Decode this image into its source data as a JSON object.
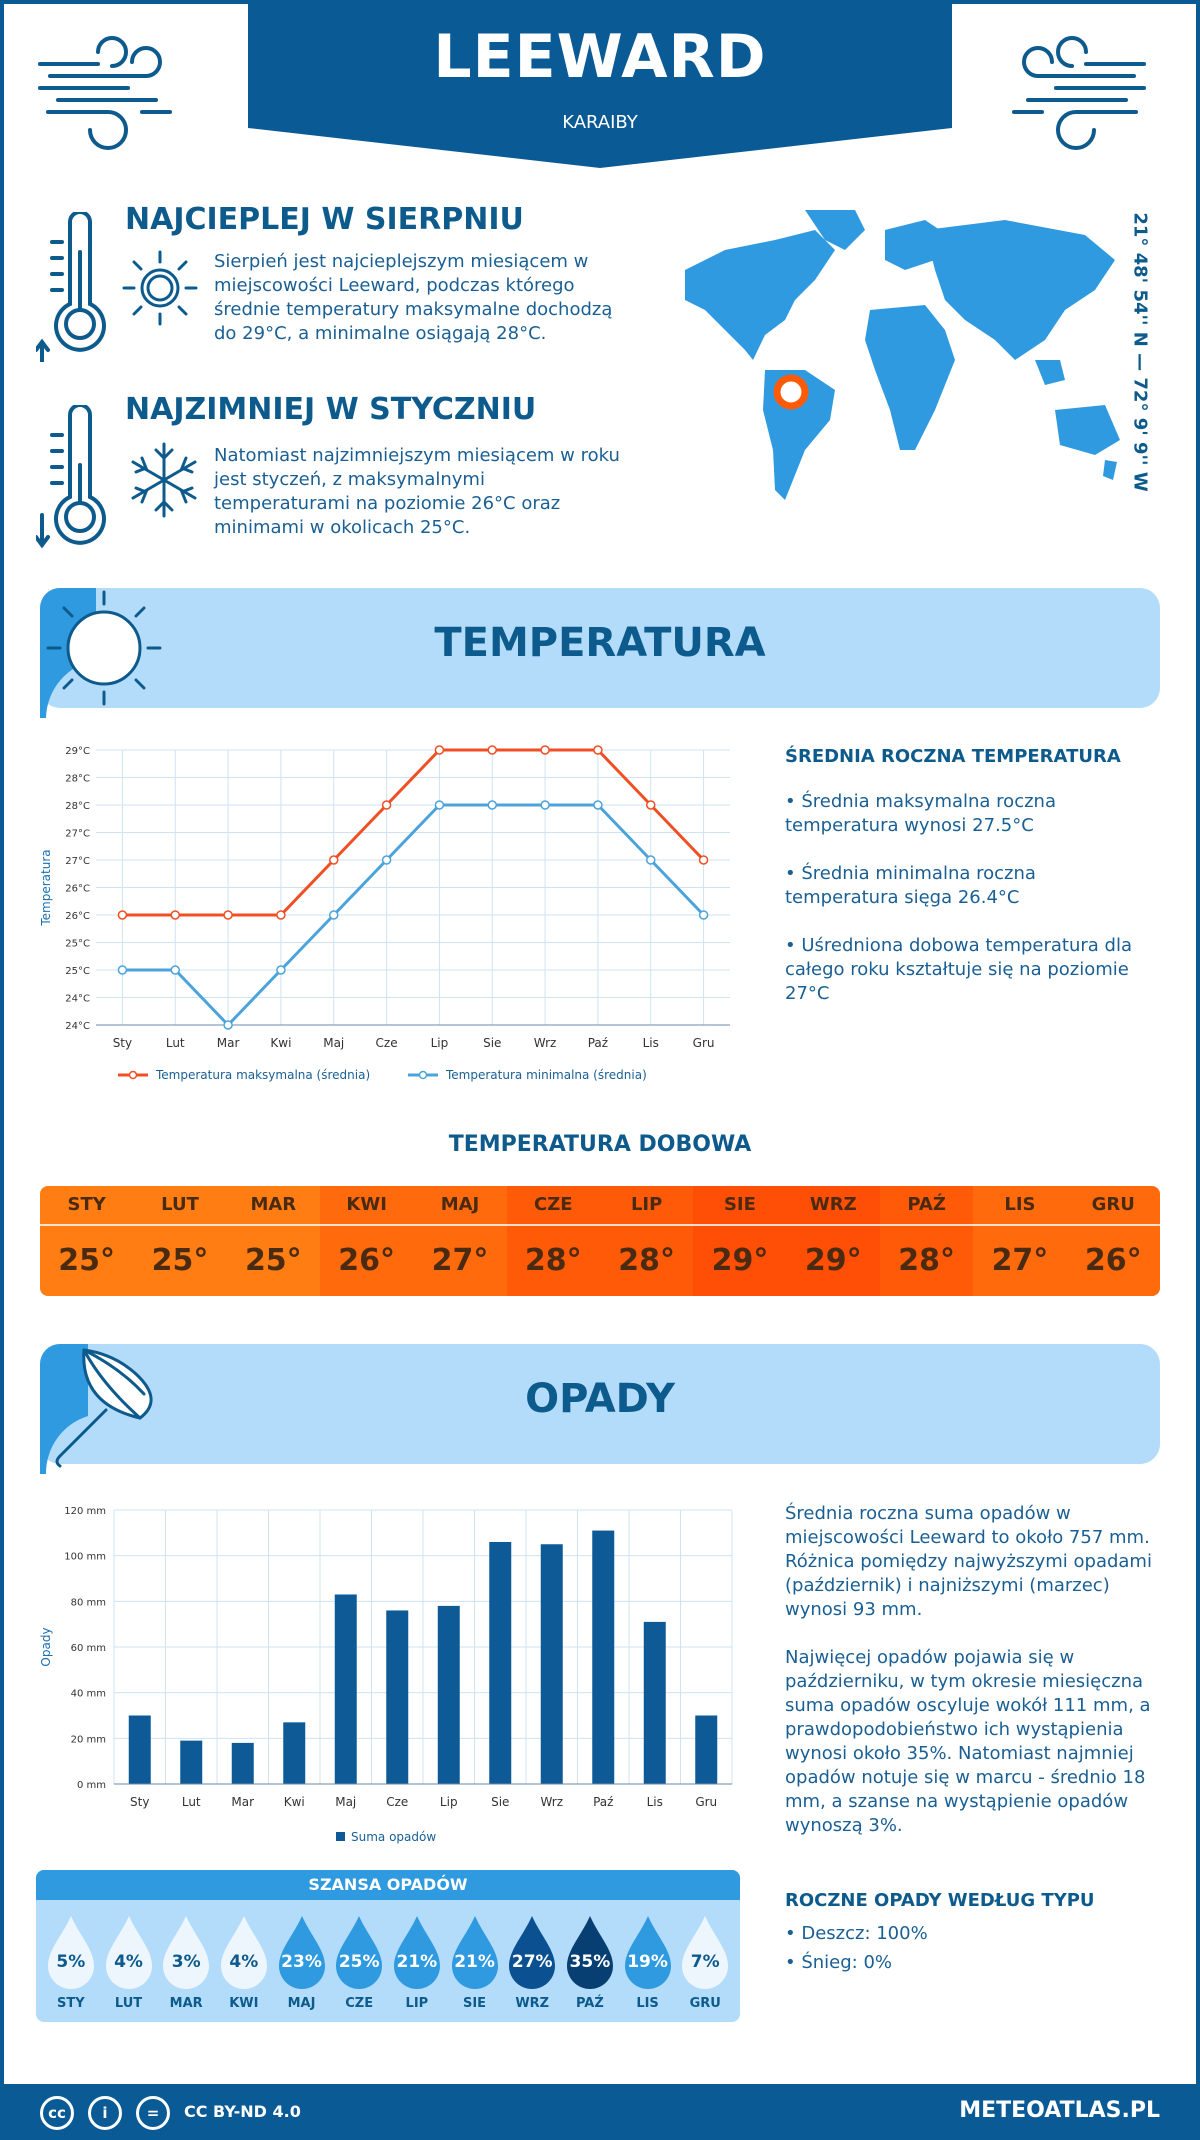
{
  "header": {
    "title": "LEEWARD",
    "subtitle": "KARAIBY"
  },
  "warmest": {
    "title": "NAJCIEPLEJ W SIERPNIU",
    "text": "Sierpień jest najcieplejszym miesiącem w miejscowości Leeward, podczas którego średnie temperatury maksymalne dochodzą do 29°C, a minimalne osiągają 28°C."
  },
  "coldest": {
    "title": "NAJZIMNIEJ W STYCZNIU",
    "text": "Natomiast najzimniejszym miesiącem w roku jest styczeń, z maksymalnymi temperaturami na poziomie 26°C oraz minimami w okolicach 25°C."
  },
  "coordinates": "21° 48' 54'' N — 72° 9' 9'' W",
  "temperature_section": {
    "title": "TEMPERATURA",
    "side_head": "ŚREDNIA ROCZNA TEMPERATURA",
    "bullets": [
      "• Średnia maksymalna roczna temperatura wynosi 27.5°C",
      "• Średnia minimalna roczna temperatura sięga 26.4°C",
      "• Uśredniona dobowa temperatura dla całego roku kształtuje się na poziomie 27°C"
    ]
  },
  "daily": {
    "title": "TEMPERATURA DOBOWA",
    "months": [
      "STY",
      "LUT",
      "MAR",
      "KWI",
      "MAJ",
      "CZE",
      "LIP",
      "SIE",
      "WRZ",
      "PAŹ",
      "LIS",
      "GRU"
    ],
    "values": [
      "25°",
      "25°",
      "25°",
      "26°",
      "27°",
      "28°",
      "28°",
      "29°",
      "29°",
      "28°",
      "27°",
      "26°"
    ],
    "colors": [
      "#ff7d12",
      "#ff7d12",
      "#ff7d12",
      "#ff6a0d",
      "#ff6a0d",
      "#ff5a08",
      "#ff5a08",
      "#ff4e05",
      "#ff4e05",
      "#ff5a08",
      "#ff6a0d",
      "#ff6a0d"
    ]
  },
  "precip_section": {
    "title": "OPADY",
    "text1": "Średnia roczna suma opadów w miejscowości Leeward to około 757 mm. Różnica pomiędzy najwyższymi opadami (październik) i najniższymi (marzec) wynosi 93 mm.",
    "text2": "Najwięcej opadów pojawia się w październiku, w tym okresie miesięczna suma opadów oscyluje wokół 111 mm, a prawdopodobieństwo ich wystąpienia wynosi około 35%. Natomiast najmniej opadów notuje się w marcu - średnio 18 mm, a szanse na wystąpienie opadów wynoszą 3%.",
    "type_head": "ROCZNE OPADY WEDŁUG TYPU",
    "types": [
      "• Deszcz: 100%",
      "• Śnieg: 0%"
    ]
  },
  "chance": {
    "title": "SZANSA OPADÓW",
    "months": [
      "STY",
      "LUT",
      "MAR",
      "KWI",
      "MAJ",
      "CZE",
      "LIP",
      "SIE",
      "WRZ",
      "PAŹ",
      "LIS",
      "GRU"
    ],
    "values": [
      "5%",
      "4%",
      "3%",
      "4%",
      "23%",
      "25%",
      "21%",
      "21%",
      "27%",
      "35%",
      "19%",
      "7%"
    ],
    "levels": [
      5,
      4,
      3,
      4,
      23,
      25,
      21,
      21,
      27,
      35,
      19,
      7
    ]
  },
  "footer": {
    "license": "CC BY-ND 4.0",
    "brand": "METEOATLAS.PL"
  },
  "chart_data": [
    {
      "type": "line",
      "x": [
        "Sty",
        "Lut",
        "Mar",
        "Kwi",
        "Maj",
        "Cze",
        "Lip",
        "Sie",
        "Wrz",
        "Paź",
        "Lis",
        "Gru"
      ],
      "ylabel": "Temperatura",
      "y_ticks": [
        "24°C",
        "24°C",
        "25°C",
        "25°C",
        "26°C",
        "26°C",
        "27°C",
        "27°C",
        "28°C",
        "28°C",
        "29°C"
      ],
      "ylim": [
        24,
        29
      ],
      "series": [
        {
          "name": "Temperatura maksymalna (średnia)",
          "color": "#f04e23",
          "values": [
            26,
            26,
            26,
            26,
            27,
            28,
            29,
            29,
            29,
            29,
            28,
            27
          ]
        },
        {
          "name": "Temperatura minimalna (średnia)",
          "color": "#4ba3db",
          "values": [
            25,
            25,
            24,
            25,
            26,
            27,
            28,
            28,
            28,
            28,
            27,
            26
          ]
        }
      ],
      "grid": true,
      "legend": "bottom"
    },
    {
      "type": "bar",
      "categories": [
        "Sty",
        "Lut",
        "Mar",
        "Kwi",
        "Maj",
        "Cze",
        "Lip",
        "Sie",
        "Wrz",
        "Paź",
        "Lis",
        "Gru"
      ],
      "ylabel": "Opady",
      "y_ticks": [
        "0 mm",
        "20 mm",
        "40 mm",
        "60 mm",
        "80 mm",
        "100 mm",
        "120 mm"
      ],
      "ylim": [
        0,
        120
      ],
      "series": [
        {
          "name": "Suma opadów",
          "color": "#0d5a96",
          "values": [
            30,
            19,
            18,
            27,
            83,
            76,
            78,
            106,
            105,
            111,
            71,
            30
          ]
        }
      ],
      "grid": true,
      "legend": "bottom"
    }
  ]
}
